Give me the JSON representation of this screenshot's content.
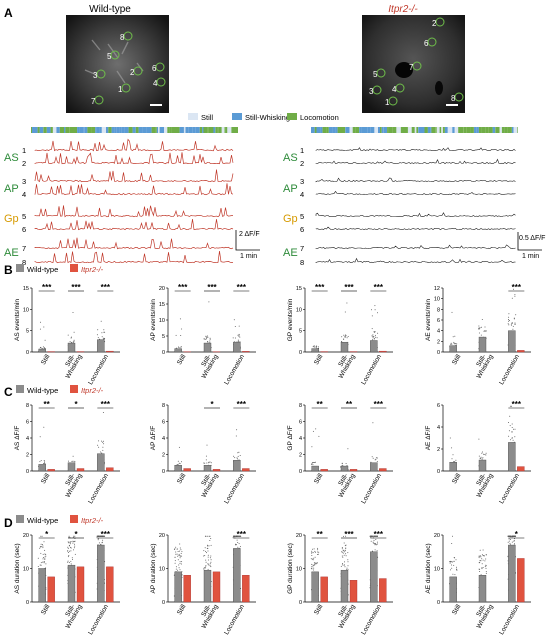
{
  "panels": {
    "A": {
      "label": "A",
      "titles": {
        "wt": "Wild-type",
        "ko": "Itpr2-/-"
      },
      "wt_rois": [
        "8",
        "5",
        "3",
        "6",
        "2",
        "4",
        "1",
        "7"
      ],
      "ko_rois": [
        "2",
        "6",
        "5",
        "7",
        "3",
        "4",
        "1",
        "8"
      ],
      "behavior_legend": [
        "Still",
        "Still-Whisking",
        "Locomotion"
      ],
      "region_labels": [
        "AS",
        "AP",
        "Gp",
        "AE"
      ],
      "trace_numbers": [
        "1",
        "2",
        "3",
        "4",
        "5",
        "6",
        "7",
        "8"
      ],
      "scale_wt": {
        "amp": "2 ΔF/F",
        "time": "1 min"
      },
      "scale_ko": {
        "amp": "0.5 ΔF/F",
        "time": "1 min"
      }
    },
    "B": {
      "label": "B"
    },
    "C": {
      "label": "C"
    },
    "D": {
      "label": "D"
    }
  },
  "legend": {
    "wt": "Wild-type",
    "ko": "Itpr2-/-"
  },
  "behaviors": [
    "Still",
    "Still-Whisking",
    "Locomotion"
  ],
  "tick_labels": {
    "still": "Still",
    "sw1": "Still-",
    "sw2": "Whisking",
    "loc": "Locomotion"
  },
  "colors": {
    "wt": "#8c8c8c",
    "ko": "#e0533f",
    "still": "#dbe6f3",
    "whisk": "#5b9bd5",
    "loc": "#70ad47",
    "trace": "#c0392b",
    "label_green": "#2e8b3a",
    "label_orange": "#d69a00"
  },
  "chart_data": [
    {
      "id": "B-AS",
      "type": "bar",
      "ylabel": "AS events/min",
      "ylim": [
        0,
        15
      ],
      "yticks": [
        0,
        5,
        10,
        15
      ],
      "categories": [
        "Still",
        "Still-Whisking",
        "Locomotion"
      ],
      "series": [
        {
          "name": "Wild-type",
          "values": [
            0.7,
            2.1,
            2.9
          ]
        },
        {
          "name": "Itpr2-/-",
          "values": [
            0.1,
            0.1,
            0.2
          ]
        }
      ],
      "significance": [
        "***",
        "***",
        "***"
      ]
    },
    {
      "id": "B-AP",
      "type": "bar",
      "ylabel": "AP events/min",
      "ylim": [
        0,
        20
      ],
      "yticks": [
        0,
        5,
        10,
        15,
        20
      ],
      "categories": [
        "Still",
        "Still-Whisking",
        "Locomotion"
      ],
      "series": [
        {
          "name": "Wild-type",
          "values": [
            1.0,
            2.8,
            3.1
          ]
        },
        {
          "name": "Itpr2-/-",
          "values": [
            0.1,
            0.1,
            0.2
          ]
        }
      ],
      "significance": [
        "***",
        "***",
        "***"
      ]
    },
    {
      "id": "B-GP",
      "type": "bar",
      "ylabel": "GP events/min",
      "ylim": [
        0,
        15
      ],
      "yticks": [
        0,
        5,
        10,
        15
      ],
      "categories": [
        "Still",
        "Still-Whisking",
        "Locomotion"
      ],
      "series": [
        {
          "name": "Wild-type",
          "values": [
            0.8,
            2.3,
            2.7
          ]
        },
        {
          "name": "Itpr2-/-",
          "values": [
            0.1,
            0.1,
            0.2
          ]
        }
      ],
      "significance": [
        "***",
        "***",
        "***"
      ]
    },
    {
      "id": "B-AE",
      "type": "bar",
      "ylabel": "AE events/min",
      "ylim": [
        0,
        12
      ],
      "yticks": [
        0,
        2,
        4,
        6,
        8,
        10,
        12
      ],
      "categories": [
        "Still",
        "Still-Whisking",
        "Locomotion"
      ],
      "series": [
        {
          "name": "Wild-type",
          "values": [
            1.2,
            2.8,
            4.0
          ]
        },
        {
          "name": "Itpr2-/-",
          "values": [
            0,
            0,
            0.3
          ]
        }
      ],
      "significance": [
        "",
        "",
        "***"
      ]
    },
    {
      "id": "C-AS",
      "type": "bar",
      "ylabel": "AS ΔF/F",
      "ylim": [
        0,
        8
      ],
      "yticks": [
        0,
        2,
        4,
        6,
        8
      ],
      "categories": [
        "Still",
        "Still-Whisking",
        "Locomotion"
      ],
      "series": [
        {
          "name": "Wild-type",
          "values": [
            0.8,
            1.0,
            2.1
          ]
        },
        {
          "name": "Itpr2-/-",
          "values": [
            0.2,
            0.3,
            0.4
          ]
        }
      ],
      "significance": [
        "**",
        "*",
        "***"
      ]
    },
    {
      "id": "C-AP",
      "type": "bar",
      "ylabel": "AP ΔF/F",
      "ylim": [
        0,
        8
      ],
      "yticks": [
        0,
        2,
        4,
        6,
        8
      ],
      "categories": [
        "Still",
        "Still-Whisking",
        "Locomotion"
      ],
      "series": [
        {
          "name": "Wild-type",
          "values": [
            0.7,
            0.7,
            1.3
          ]
        },
        {
          "name": "Itpr2-/-",
          "values": [
            0.3,
            0.2,
            0.3
          ]
        }
      ],
      "significance": [
        "",
        "*",
        "***"
      ]
    },
    {
      "id": "C-GP",
      "type": "bar",
      "ylabel": "GP ΔF/F",
      "ylim": [
        0,
        8
      ],
      "yticks": [
        0,
        2,
        4,
        6,
        8
      ],
      "categories": [
        "Still",
        "Still-Whisking",
        "Locomotion"
      ],
      "series": [
        {
          "name": "Wild-type",
          "values": [
            0.6,
            0.6,
            1.0
          ]
        },
        {
          "name": "Itpr2-/-",
          "values": [
            0.2,
            0.2,
            0.3
          ]
        }
      ],
      "significance": [
        "**",
        "**",
        "***"
      ]
    },
    {
      "id": "C-AE",
      "type": "bar",
      "ylabel": "AE ΔF/F",
      "ylim": [
        0,
        6
      ],
      "yticks": [
        0,
        2,
        4,
        6
      ],
      "categories": [
        "Still",
        "Still-Whisking",
        "Locomotion"
      ],
      "series": [
        {
          "name": "Wild-type",
          "values": [
            0.8,
            1.0,
            2.6
          ]
        },
        {
          "name": "Itpr2-/-",
          "values": [
            0,
            0,
            0.4
          ]
        }
      ],
      "significance": [
        "",
        "",
        "***"
      ]
    },
    {
      "id": "D-AS",
      "type": "bar",
      "ylabel": "AS duration (sec)",
      "ylim": [
        0,
        20
      ],
      "yticks": [
        0,
        10,
        20
      ],
      "categories": [
        "Still",
        "Still-Whisking",
        "Locomotion"
      ],
      "series": [
        {
          "name": "Wild-type",
          "values": [
            10,
            11,
            17
          ]
        },
        {
          "name": "Itpr2-/-",
          "values": [
            7.5,
            10.5,
            10.5
          ]
        }
      ],
      "significance": [
        "*",
        "*",
        "***"
      ]
    },
    {
      "id": "D-AP",
      "type": "bar",
      "ylabel": "AP duration (sec)",
      "ylim": [
        0,
        20
      ],
      "yticks": [
        0,
        10,
        20
      ],
      "categories": [
        "Still",
        "Still-Whisking",
        "Locomotion"
      ],
      "series": [
        {
          "name": "Wild-type",
          "values": [
            9,
            9.5,
            16
          ]
        },
        {
          "name": "Itpr2-/-",
          "values": [
            8,
            9,
            8
          ]
        }
      ],
      "significance": [
        "",
        "",
        "***"
      ]
    },
    {
      "id": "D-GP",
      "type": "bar",
      "ylabel": "GP duration (sec)",
      "ylim": [
        0,
        20
      ],
      "yticks": [
        0,
        10,
        20
      ],
      "categories": [
        "Still",
        "Still-Whisking",
        "Locomotion"
      ],
      "series": [
        {
          "name": "Wild-type",
          "values": [
            9,
            9.5,
            15
          ]
        },
        {
          "name": "Itpr2-/-",
          "values": [
            7.5,
            6.5,
            7
          ]
        }
      ],
      "significance": [
        "**",
        "***",
        "***"
      ]
    },
    {
      "id": "D-AE",
      "type": "bar",
      "ylabel": "AE duration (sec)",
      "ylim": [
        0,
        20
      ],
      "yticks": [
        0,
        10,
        20
      ],
      "categories": [
        "Still",
        "Still-Whisking",
        "Locomotion"
      ],
      "series": [
        {
          "name": "Wild-type",
          "values": [
            7.5,
            8,
            17
          ]
        },
        {
          "name": "Itpr2-/-",
          "values": [
            0,
            0,
            13
          ]
        }
      ],
      "significance": [
        "",
        "",
        "*"
      ]
    }
  ]
}
